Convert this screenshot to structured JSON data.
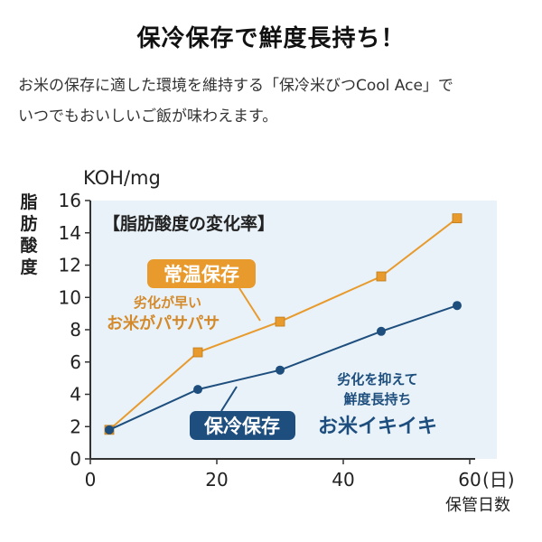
{
  "header": {
    "title": "保冷保存で鮮度長持ち！",
    "desc_line1": "お米の保存に適した環境を維持する「保冷米びつCool Ace」で",
    "desc_line2": "いつでもおいしいご飯が味わえます。"
  },
  "chart_data": {
    "type": "line",
    "title": "【脂肪酸度の変化率】",
    "unit": "KOH/mg",
    "ylabel": "脂肪酸度",
    "xlabel": "保管日数",
    "x_unit": "(日)",
    "x": [
      3,
      17,
      30,
      46,
      58
    ],
    "xlim": [
      0,
      60
    ],
    "ylim": [
      0,
      16
    ],
    "xticks": [
      "0",
      "20",
      "40",
      "60"
    ],
    "yticks": [
      "0",
      "2",
      "4",
      "6",
      "8",
      "10",
      "12",
      "14",
      "16"
    ],
    "series": [
      {
        "name": "常温保存",
        "values": [
          1.8,
          6.6,
          8.5,
          11.3,
          14.9
        ],
        "color": "#e89a2c",
        "marker": "square",
        "note_line1": "劣化が早い",
        "note_line2": "お米がパサパサ"
      },
      {
        "name": "保冷保存",
        "values": [
          1.8,
          4.3,
          5.5,
          7.9,
          9.5
        ],
        "color": "#1e4e7e",
        "marker": "circle",
        "note_line1": "劣化を抑えて",
        "note_line2": "鮮度長持ち",
        "note_line3": "お米イキイキ"
      }
    ],
    "grid": false,
    "background": "#e8f2f8"
  }
}
